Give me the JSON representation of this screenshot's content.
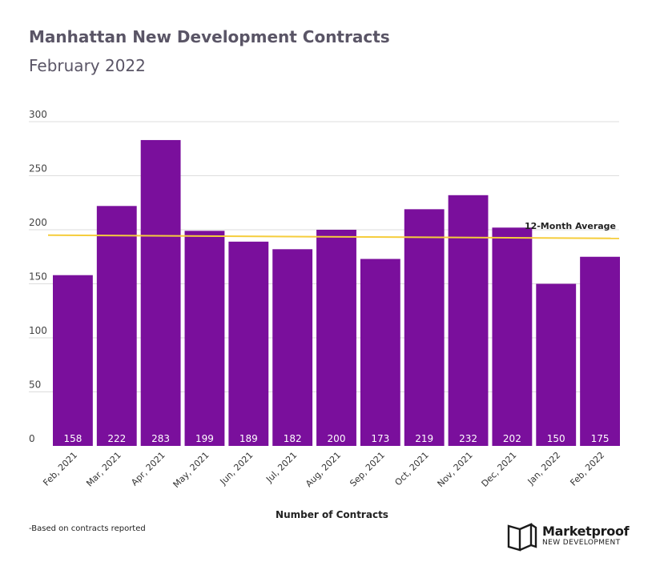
{
  "header": {
    "title": "Manhattan New Development Contracts",
    "subtitle": "February 2022"
  },
  "chart_data": {
    "type": "bar",
    "title": "Manhattan New Development Contracts",
    "subtitle": "February 2022",
    "xlabel": "Number of Contracts",
    "ylabel": "",
    "ylim": [
      0,
      300
    ],
    "yticks": [
      0,
      50,
      100,
      150,
      200,
      250,
      300
    ],
    "grid": true,
    "categories": [
      "Feb, 2021",
      "Mar, 2021",
      "Apr, 2021",
      "May, 2021",
      "Jun, 2021",
      "Jul, 2021",
      "Aug, 2021",
      "Sep, 2021",
      "Oct, 2021",
      "Nov, 2021",
      "Dec, 2021",
      "Jan, 2022",
      "Feb, 2022"
    ],
    "values": [
      158,
      222,
      283,
      199,
      189,
      182,
      200,
      173,
      219,
      232,
      202,
      150,
      175
    ],
    "bar_color": "#7a0f9c",
    "average_line": {
      "label": "12-Month Average",
      "start_value": 195,
      "end_value": 192,
      "color": "#f5cd3c"
    }
  },
  "footnote": "-Based on contracts reported",
  "brand": {
    "name": "Marketproof",
    "tagline": "NEW DEVELOPMENT",
    "icon": "marketproof-logo-icon"
  }
}
